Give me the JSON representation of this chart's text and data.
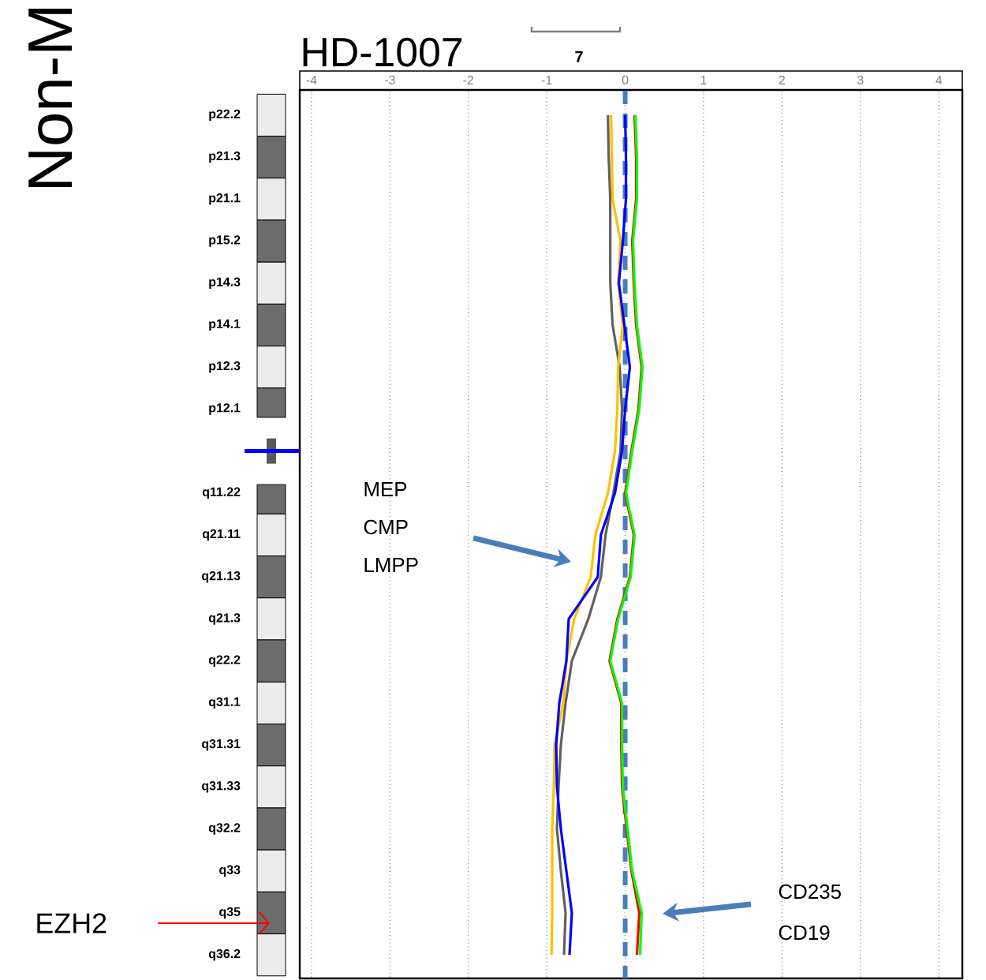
{
  "chart_data": {
    "type": "line",
    "orientation": "horizontal",
    "title": "HD-1007",
    "categories": [
      "p22.2",
      "p21.3",
      "p21.1",
      "p15.2",
      "p14.3",
      "p14.1",
      "p12.3",
      "p12.1",
      null,
      "q11.22",
      "q21.11",
      "q21.13",
      "q21.3",
      "q22.2",
      "q31.1",
      "q31.31",
      "q31.33",
      "q32.2",
      "q33",
      "q35",
      "q36.2"
    ],
    "series": [
      {
        "color": "#606060",
        "values": [
          -0.22,
          -0.21,
          -0.19,
          -0.19,
          -0.19,
          -0.16,
          -0.07,
          -0.04,
          -0.06,
          -0.15,
          -0.25,
          -0.31,
          -0.47,
          -0.68,
          -0.76,
          -0.82,
          -0.85,
          -0.87,
          -0.82,
          -0.76,
          -0.78
        ]
      },
      {
        "color": "#ffc000",
        "values": [
          -0.18,
          -0.17,
          -0.16,
          -0.06,
          -0.09,
          -0.03,
          -0.09,
          -0.1,
          -0.13,
          -0.22,
          -0.38,
          -0.44,
          -0.65,
          -0.75,
          -0.79,
          -0.9,
          -0.91,
          -0.93,
          -0.93,
          -0.93,
          -0.94
        ]
      },
      {
        "color": "#0000ff",
        "values": [
          0.0,
          0.01,
          0.01,
          -0.03,
          -0.08,
          -0.01,
          0.06,
          0.0,
          -0.04,
          -0.13,
          -0.31,
          -0.35,
          -0.72,
          -0.75,
          -0.84,
          -0.88,
          -0.87,
          -0.82,
          -0.75,
          -0.68,
          -0.71
        ]
      },
      {
        "color": "#ff0000",
        "values": [
          0.12,
          0.14,
          0.14,
          0.09,
          0.11,
          0.14,
          0.21,
          0.17,
          0.08,
          0.0,
          0.11,
          0.06,
          -0.1,
          -0.2,
          -0.05,
          -0.05,
          -0.04,
          0.02,
          0.08,
          0.18,
          0.15
        ]
      },
      {
        "color": "#00ff00",
        "values": [
          0.13,
          0.15,
          0.15,
          0.1,
          0.12,
          0.15,
          0.22,
          0.18,
          0.09,
          0.01,
          0.12,
          0.07,
          -0.09,
          -0.19,
          -0.04,
          -0.04,
          -0.03,
          0.03,
          0.09,
          0.21,
          0.19
        ]
      }
    ],
    "xlim": [
      -4.15,
      4.3
    ],
    "xticks": [
      -4,
      -3,
      -2,
      -1,
      0,
      1,
      2,
      3,
      4
    ],
    "grid": "x",
    "ref_lines": [
      {
        "axis": "x",
        "value": 0,
        "color": "#4a7ebb",
        "line_style": "dashed"
      }
    ],
    "annotations": [
      "Non-M",
      "7",
      "MEP",
      "CMP",
      "LMPP",
      "CD235",
      "CD19",
      "EZH2"
    ]
  }
}
